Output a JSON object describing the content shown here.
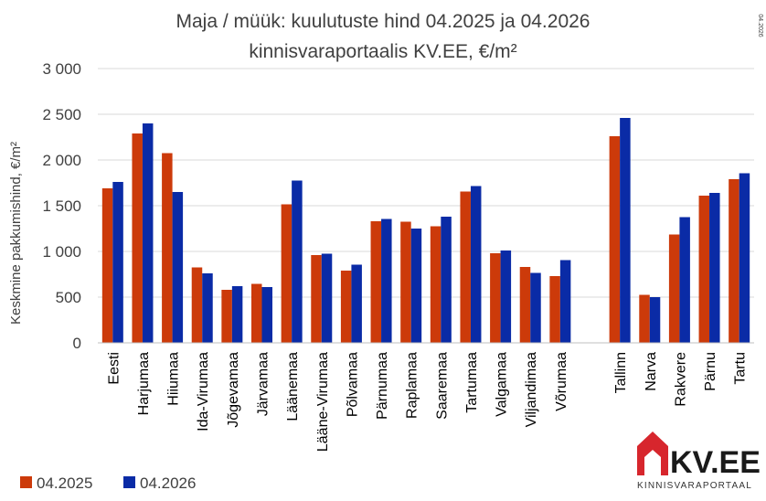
{
  "title": {
    "line1": "Maja / müük: kuulutuste hind 04.2025 ja 04.2026",
    "line2": "kinnisvaraportaalis KV.EE, €/m²"
  },
  "stamp": "04.2026",
  "brand": {
    "name": "KV.EE",
    "tagline": "KINNISVARAPORTAAL",
    "red": "#d7262d",
    "dark": "#1a1a1a"
  },
  "legend": [
    "04.2025",
    "04.2026"
  ],
  "chart_data": {
    "type": "bar",
    "title": "Maja / müük: kuulutuste hind 04.2025 ja 04.2026 kinnisvaraportaalis KV.EE, €/m²",
    "xlabel": "",
    "ylabel": "Keskmine pakkumishind, €/m²",
    "ylim": [
      0,
      3000
    ],
    "yticks": [
      0,
      500,
      1000,
      1500,
      2000,
      2500,
      3000
    ],
    "ytick_labels": [
      "0",
      "500",
      "1 000",
      "1 500",
      "2 000",
      "2 500",
      "3 000"
    ],
    "grid": true,
    "legend_position": "bottom-left",
    "categories": [
      "Eesti",
      "Harjumaa",
      "Hiiumaa",
      "Ida-Virumaa",
      "Jõgevamaa",
      "Järvamaa",
      "Läänemaa",
      "Lääne-Virumaa",
      "Põlvamaa",
      "Pärnumaa",
      "Raplamaa",
      "Saaremaa",
      "Tartumaa",
      "Valgamaa",
      "Viljandimaa",
      "Võrumaa",
      "",
      "Tallinn",
      "Narva",
      "Rakvere",
      "Pärnu",
      "Tartu"
    ],
    "series": [
      {
        "name": "04.2025",
        "color": "#cc3a0a",
        "values": [
          1690,
          2290,
          2075,
          825,
          580,
          645,
          1515,
          960,
          790,
          1330,
          1325,
          1275,
          1655,
          980,
          830,
          730,
          null,
          2260,
          525,
          1185,
          1610,
          1790
        ]
      },
      {
        "name": "04.2026",
        "color": "#0a2ba6",
        "values": [
          1760,
          2400,
          1650,
          760,
          620,
          610,
          1775,
          975,
          855,
          1355,
          1250,
          1380,
          1715,
          1010,
          765,
          905,
          null,
          2460,
          500,
          1375,
          1640,
          1855
        ]
      }
    ]
  }
}
